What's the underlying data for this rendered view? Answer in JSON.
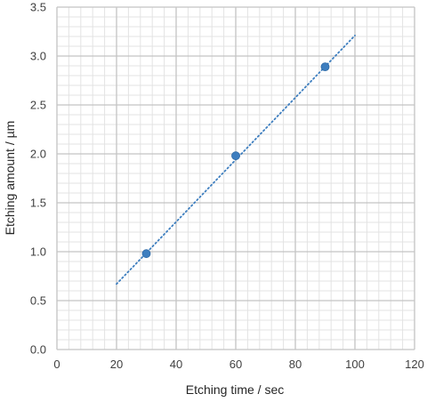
{
  "chart_data": {
    "type": "scatter",
    "xlabel": "Etching time / sec",
    "ylabel": "Etching amount / µm",
    "xlim": [
      0,
      120
    ],
    "ylim": [
      0,
      3.5
    ],
    "xticks": [
      0,
      20,
      40,
      60,
      80,
      100,
      120
    ],
    "yticks": [
      0.0,
      0.5,
      1.0,
      1.5,
      2.0,
      2.5,
      3.0,
      3.5
    ],
    "x_minor_step": 4,
    "y_minor_step": 0.1,
    "grid": true,
    "series": [
      {
        "points": [
          {
            "x": 30,
            "y": 0.98
          },
          {
            "x": 60,
            "y": 1.98
          },
          {
            "x": 90,
            "y": 2.89
          }
        ],
        "color": "#3d7ebf"
      }
    ],
    "trendline": {
      "style": "dotted",
      "x": [
        20,
        100
      ],
      "y": [
        0.67,
        3.21
      ],
      "color": "#3d7ebf"
    }
  }
}
